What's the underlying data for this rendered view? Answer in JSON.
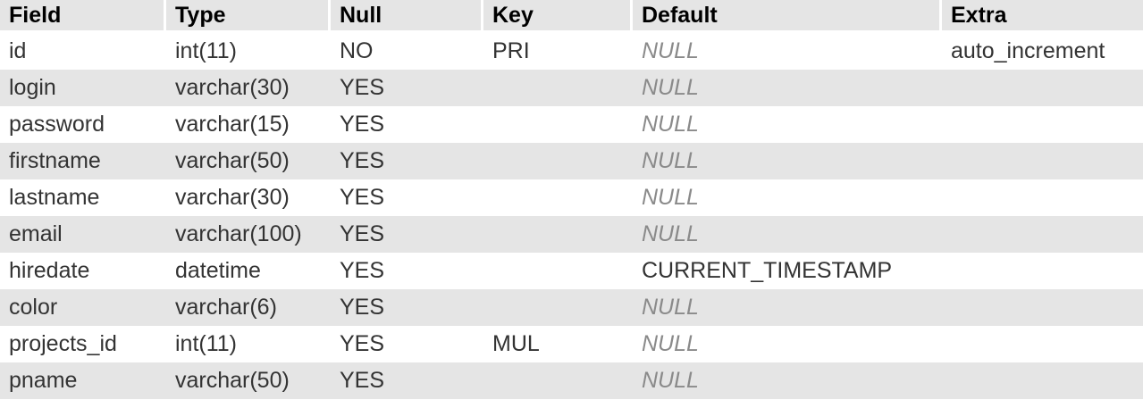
{
  "table": {
    "columns": [
      "Field",
      "Type",
      "Null",
      "Key",
      "Default",
      "Extra"
    ],
    "rows": [
      {
        "field": "id",
        "type": "int(11)",
        "null": "NO",
        "key": "PRI",
        "default": "NULL",
        "default_is_null": true,
        "extra": "auto_increment"
      },
      {
        "field": "login",
        "type": "varchar(30)",
        "null": "YES",
        "key": "",
        "default": "NULL",
        "default_is_null": true,
        "extra": ""
      },
      {
        "field": "password",
        "type": "varchar(15)",
        "null": "YES",
        "key": "",
        "default": "NULL",
        "default_is_null": true,
        "extra": ""
      },
      {
        "field": "firstname",
        "type": "varchar(50)",
        "null": "YES",
        "key": "",
        "default": "NULL",
        "default_is_null": true,
        "extra": ""
      },
      {
        "field": "lastname",
        "type": "varchar(30)",
        "null": "YES",
        "key": "",
        "default": "NULL",
        "default_is_null": true,
        "extra": ""
      },
      {
        "field": "email",
        "type": "varchar(100)",
        "null": "YES",
        "key": "",
        "default": "NULL",
        "default_is_null": true,
        "extra": ""
      },
      {
        "field": "hiredate",
        "type": "datetime",
        "null": "YES",
        "key": "",
        "default": "CURRENT_TIMESTAMP",
        "default_is_null": false,
        "extra": ""
      },
      {
        "field": "color",
        "type": "varchar(6)",
        "null": "YES",
        "key": "",
        "default": "NULL",
        "default_is_null": true,
        "extra": ""
      },
      {
        "field": "projects_id",
        "type": "int(11)",
        "null": "YES",
        "key": "MUL",
        "default": "NULL",
        "default_is_null": true,
        "extra": ""
      },
      {
        "field": "pname",
        "type": "varchar(50)",
        "null": "YES",
        "key": "",
        "default": "NULL",
        "default_is_null": true,
        "extra": ""
      }
    ]
  },
  "colors": {
    "header_bg": "#e5e5e5",
    "even_row_bg": "#e5e5e5",
    "odd_row_bg": "#ffffff",
    "text": "#333333",
    "null_text": "#8a8a8a"
  }
}
